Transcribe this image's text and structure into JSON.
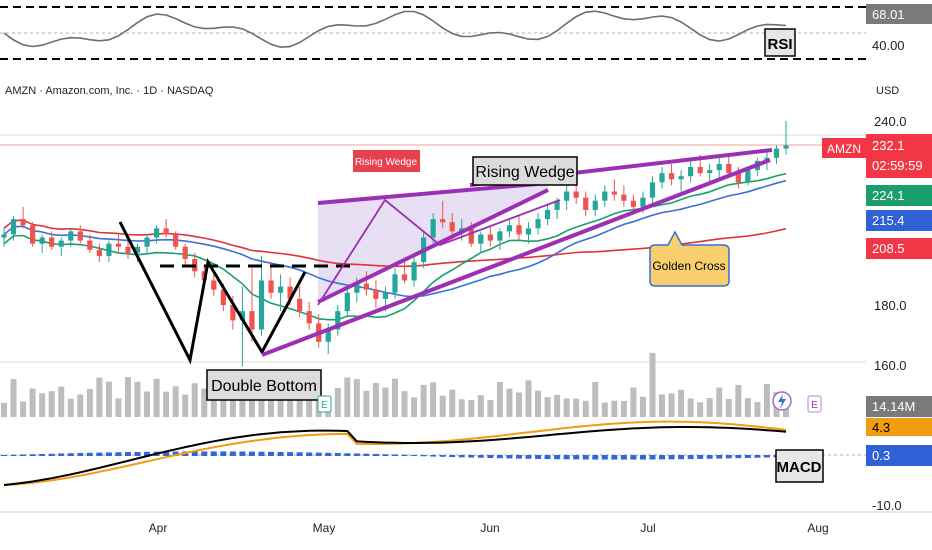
{
  "header": {
    "symbol_title": "AMZN · Amazon.com, Inc. · 1D · NASDAQ",
    "currency": "USD"
  },
  "rsi_panel": {
    "label": "RSI",
    "value_label": "68.01",
    "level_label": "40.00"
  },
  "price_panel": {
    "price_ticks": [
      "240.0",
      "180.0",
      "160.0"
    ],
    "badges": {
      "ticker": "AMZN",
      "last_price": "232.1",
      "countdown": "02:59:59",
      "ma_fast": "224.1",
      "ma_mid": "215.4",
      "ma_slow": "208.5"
    },
    "annotations": {
      "rising_wedge_small": "Rising Wedge",
      "rising_wedge_large": "Rising Wedge",
      "double_bottom": "Double Bottom",
      "golden_cross": "Golden Cross"
    },
    "event_markers": [
      "E",
      "E"
    ],
    "volume_label": "14.14M"
  },
  "macd_panel": {
    "label": "MACD",
    "value_top": "4.3",
    "value_bottom": "0.3",
    "bottom_tick": "-10.0"
  },
  "time_axis": [
    "Apr",
    "May",
    "Jun",
    "Jul",
    "Aug"
  ],
  "colors": {
    "up": "#26a69a",
    "down": "#ef5350",
    "ma_fast": "#1b9e6e",
    "ma_mid": "#3a6fd8",
    "ma_slow": "#e0323c",
    "wedge": "#9c2fb5",
    "macd_line": "#000000",
    "signal_line": "#f39c12",
    "histogram": "#3366dd"
  },
  "chart_data": {
    "type": "candlestick",
    "symbol": "AMZN",
    "interval": "1D",
    "x_months": [
      "Apr",
      "May",
      "Jun",
      "Jul",
      "Aug"
    ],
    "y_range": [
      150,
      250
    ],
    "candles": [
      [
        202,
        205,
        199,
        203
      ],
      [
        203,
        209,
        201,
        208
      ],
      [
        208,
        212,
        205,
        206
      ],
      [
        206,
        207,
        199,
        200
      ],
      [
        200,
        203,
        197,
        202
      ],
      [
        202,
        204,
        198,
        199
      ],
      [
        199,
        202,
        196,
        201
      ],
      [
        201,
        205,
        199,
        204
      ],
      [
        204,
        206,
        200,
        201
      ],
      [
        201,
        203,
        197,
        198
      ],
      [
        198,
        200,
        194,
        196
      ],
      [
        196,
        201,
        194,
        200
      ],
      [
        200,
        203,
        197,
        199
      ],
      [
        199,
        201,
        195,
        197
      ],
      [
        197,
        200,
        194,
        199
      ],
      [
        199,
        203,
        197,
        202
      ],
      [
        202,
        206,
        200,
        205
      ],
      [
        205,
        208,
        202,
        203
      ],
      [
        203,
        204,
        198,
        199
      ],
      [
        199,
        200,
        193,
        195
      ],
      [
        195,
        197,
        189,
        191
      ],
      [
        191,
        193,
        186,
        188
      ],
      [
        188,
        190,
        183,
        185
      ],
      [
        185,
        187,
        178,
        180
      ],
      [
        180,
        183,
        172,
        175
      ],
      [
        175,
        186,
        160,
        178
      ],
      [
        178,
        192,
        168,
        172
      ],
      [
        172,
        196,
        170,
        188
      ],
      [
        188,
        194,
        182,
        184
      ],
      [
        184,
        190,
        178,
        186
      ],
      [
        186,
        189,
        180,
        182
      ],
      [
        182,
        186,
        176,
        178
      ],
      [
        178,
        181,
        172,
        174
      ],
      [
        174,
        177,
        166,
        168
      ],
      [
        168,
        174,
        164,
        172
      ],
      [
        172,
        180,
        170,
        178
      ],
      [
        178,
        186,
        176,
        184
      ],
      [
        184,
        189,
        181,
        187
      ],
      [
        187,
        191,
        183,
        185
      ],
      [
        185,
        188,
        179,
        182
      ],
      [
        182,
        186,
        178,
        184
      ],
      [
        184,
        192,
        182,
        190
      ],
      [
        190,
        194,
        187,
        188
      ],
      [
        188,
        196,
        186,
        194
      ],
      [
        194,
        204,
        192,
        202
      ],
      [
        202,
        210,
        200,
        208
      ],
      [
        208,
        214,
        205,
        207
      ],
      [
        207,
        210,
        202,
        204
      ],
      [
        204,
        208,
        201,
        205
      ],
      [
        205,
        207,
        199,
        200
      ],
      [
        200,
        204,
        197,
        203
      ],
      [
        203,
        206,
        199,
        201
      ],
      [
        201,
        205,
        198,
        204
      ],
      [
        204,
        208,
        202,
        206
      ],
      [
        206,
        209,
        201,
        203
      ],
      [
        203,
        207,
        200,
        205
      ],
      [
        205,
        210,
        203,
        208
      ],
      [
        208,
        213,
        206,
        211
      ],
      [
        211,
        215,
        208,
        214
      ],
      [
        214,
        219,
        211,
        217
      ],
      [
        217,
        221,
        213,
        215
      ],
      [
        215,
        217,
        209,
        211
      ],
      [
        211,
        216,
        209,
        214
      ],
      [
        214,
        219,
        212,
        217
      ],
      [
        217,
        221,
        214,
        216
      ],
      [
        216,
        219,
        212,
        214
      ],
      [
        214,
        216,
        210,
        212
      ],
      [
        212,
        217,
        210,
        215
      ],
      [
        215,
        222,
        213,
        220
      ],
      [
        220,
        225,
        218,
        223
      ],
      [
        223,
        226,
        219,
        221
      ],
      [
        221,
        224,
        217,
        222
      ],
      [
        222,
        227,
        220,
        225
      ],
      [
        225,
        229,
        222,
        223
      ],
      [
        223,
        226,
        219,
        224
      ],
      [
        224,
        228,
        221,
        226
      ],
      [
        226,
        229,
        222,
        223
      ],
      [
        223,
        225,
        218,
        220
      ],
      [
        220,
        225,
        219,
        224
      ],
      [
        224,
        228,
        222,
        227
      ],
      [
        227,
        230,
        224,
        228
      ],
      [
        228,
        232,
        226,
        231
      ],
      [
        231,
        240,
        229,
        232
      ]
    ],
    "moving_averages": [
      {
        "period": "fast",
        "last": 224.1
      },
      {
        "period": "mid",
        "last": 215.4
      },
      {
        "period": "slow",
        "last": 208.5
      }
    ],
    "rsi": {
      "last": 68.01,
      "level": 40.0
    },
    "macd": {
      "macd_last": 4.3,
      "signal_last": 0.3,
      "axis_min": -10.0
    },
    "last_volume": "14.14M",
    "annotations": [
      "Rising Wedge",
      "Rising Wedge",
      "Double Bottom",
      "Golden Cross"
    ]
  }
}
